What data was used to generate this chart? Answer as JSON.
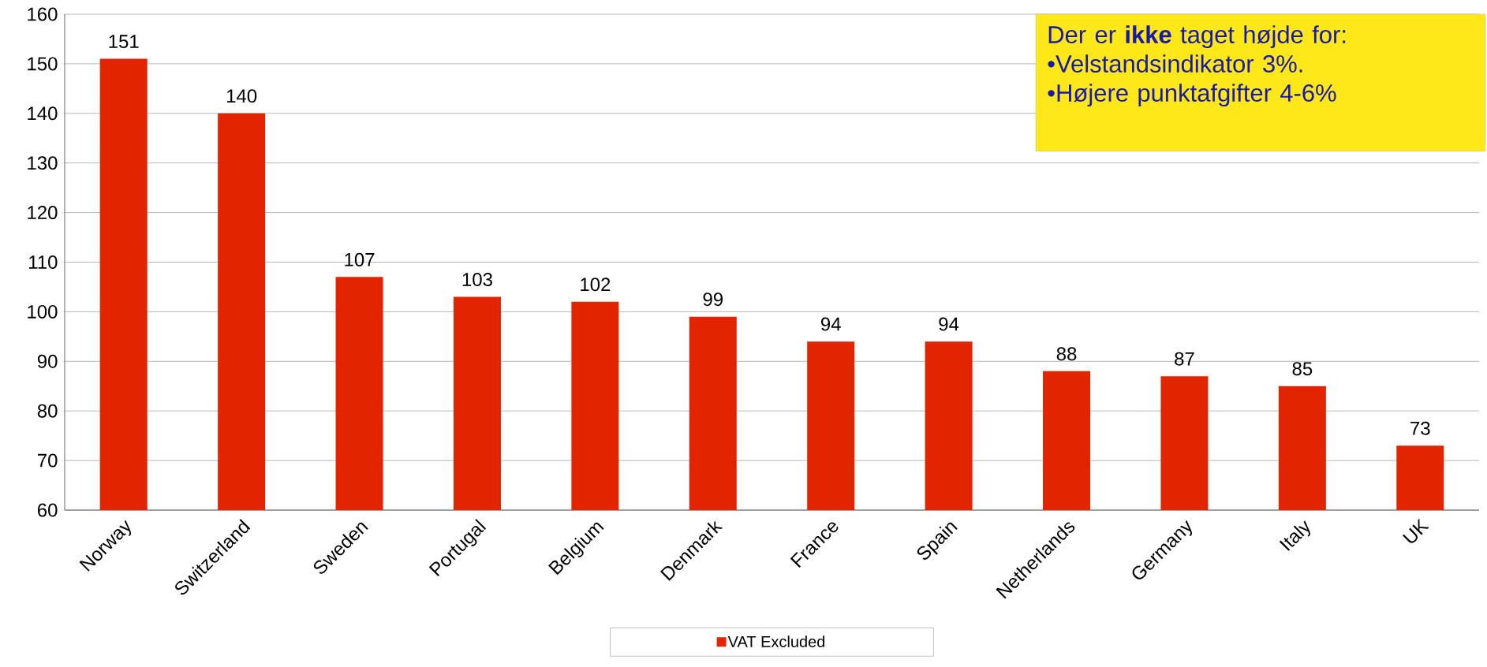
{
  "chart_data": {
    "type": "bar",
    "categories": [
      "Norway",
      "Switzerland",
      "Sweden",
      "Portugal",
      "Belgium",
      "Denmark",
      "France",
      "Spain",
      "Netherlands",
      "Germany",
      "Italy",
      "UK"
    ],
    "series": [
      {
        "name": "VAT Excluded",
        "color": "#e32400",
        "values": [
          151,
          140,
          107,
          103,
          102,
          99,
          94,
          94,
          88,
          87,
          85,
          73
        ]
      }
    ],
    "ylim": [
      60,
      160
    ],
    "yticks": [
      60,
      70,
      80,
      90,
      100,
      110,
      120,
      130,
      140,
      150,
      160
    ],
    "grid": "y",
    "legend": "bottom",
    "data_labels": true,
    "annotations": [
      "Der er **ikke** taget højde for:",
      "•Velstandsindikator 3%.",
      "•Højere punktafgifter 4-6%"
    ]
  }
}
